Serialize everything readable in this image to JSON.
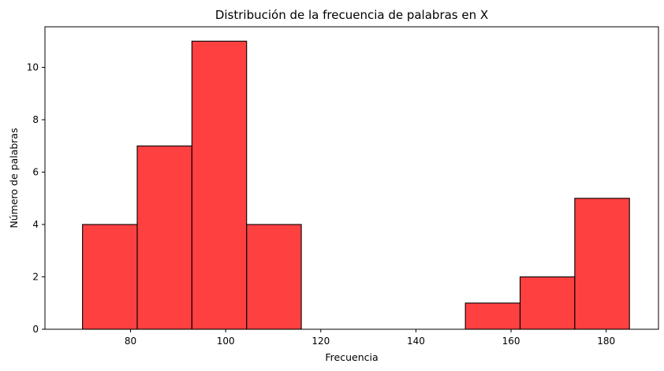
{
  "chart_data": {
    "type": "bar",
    "subtype": "histogram",
    "title": "Distribución de la frecuencia de palabras en X",
    "xlabel": "Frecuencia",
    "ylabel": "Número de palabras",
    "bin_edges": [
      69.9,
      81.4,
      92.9,
      104.4,
      115.9,
      127.4,
      138.9,
      150.4,
      161.9,
      173.4,
      184.9
    ],
    "values": [
      4,
      7,
      11,
      4,
      0,
      0,
      0,
      1,
      2,
      5
    ],
    "xlim": [
      62,
      191
    ],
    "ylim": [
      0,
      11.55
    ],
    "xticks": [
      80,
      100,
      120,
      140,
      160,
      180
    ],
    "yticks": [
      0,
      2,
      4,
      6,
      8,
      10
    ],
    "bar_color": "#ff0000",
    "bar_alpha": 0.75,
    "edge_color": "#000000",
    "grid": false,
    "legend": "none"
  }
}
